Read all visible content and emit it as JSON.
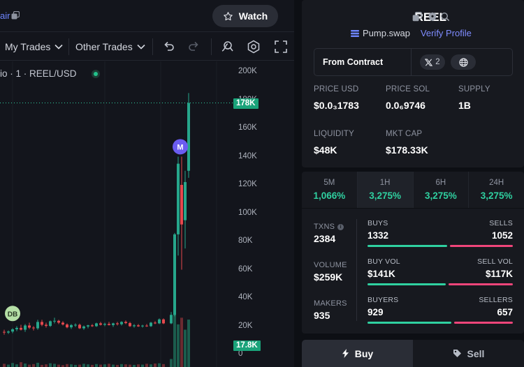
{
  "header": {
    "pair_link": "air",
    "watch_label": "Watch"
  },
  "toolbar": {
    "my_trades": "My Trades",
    "other_trades": "Other Trades"
  },
  "chart": {
    "title": "io · 1 · REEL/USD",
    "last_price_tag": "178K",
    "volume_tag": "17.8K",
    "marker_m": "M",
    "marker_db": "DB"
  },
  "chart_data": {
    "type": "candlestick",
    "title": "REEL/USD",
    "interval": "1",
    "y_axis": {
      "ticks": [
        "200K",
        "180K",
        "160K",
        "140K",
        "120K",
        "100K",
        "80K",
        "60K",
        "40K",
        "20K",
        "0"
      ],
      "range": [
        0,
        200000
      ]
    },
    "last_price": 178000,
    "last_volume": 17800,
    "candles": [
      {
        "o": 16000,
        "h": 17500,
        "l": 14000,
        "c": 15500
      },
      {
        "o": 15500,
        "h": 17000,
        "l": 14500,
        "c": 16200
      },
      {
        "o": 16200,
        "h": 18500,
        "l": 15000,
        "c": 17800
      },
      {
        "o": 17800,
        "h": 20000,
        "l": 16500,
        "c": 18800
      },
      {
        "o": 18800,
        "h": 21000,
        "l": 17000,
        "c": 17500
      },
      {
        "o": 17500,
        "h": 21500,
        "l": 16000,
        "c": 20500
      },
      {
        "o": 20500,
        "h": 22500,
        "l": 18000,
        "c": 19000
      },
      {
        "o": 19000,
        "h": 20000,
        "l": 17000,
        "c": 18500
      },
      {
        "o": 18500,
        "h": 24500,
        "l": 17500,
        "c": 23000
      },
      {
        "o": 23000,
        "h": 24500,
        "l": 20000,
        "c": 21000
      },
      {
        "o": 21000,
        "h": 22500,
        "l": 19000,
        "c": 20200
      },
      {
        "o": 20200,
        "h": 24000,
        "l": 19500,
        "c": 23500
      },
      {
        "o": 23500,
        "h": 26000,
        "l": 22000,
        "c": 23800
      },
      {
        "o": 23800,
        "h": 24500,
        "l": 21500,
        "c": 22500
      },
      {
        "o": 22500,
        "h": 23500,
        "l": 20500,
        "c": 21200
      },
      {
        "o": 21200,
        "h": 22000,
        "l": 18500,
        "c": 19200
      },
      {
        "o": 19200,
        "h": 21500,
        "l": 18000,
        "c": 20800
      },
      {
        "o": 20800,
        "h": 22000,
        "l": 19500,
        "c": 21000
      },
      {
        "o": 21000,
        "h": 21800,
        "l": 18000,
        "c": 18500
      },
      {
        "o": 18500,
        "h": 20500,
        "l": 17500,
        "c": 19800
      },
      {
        "o": 19800,
        "h": 21000,
        "l": 18500,
        "c": 20600
      },
      {
        "o": 20600,
        "h": 21500,
        "l": 19500,
        "c": 20000
      },
      {
        "o": 20000,
        "h": 22500,
        "l": 19500,
        "c": 22000
      },
      {
        "o": 22000,
        "h": 23000,
        "l": 20500,
        "c": 21000
      },
      {
        "o": 21000,
        "h": 22500,
        "l": 20000,
        "c": 21600
      },
      {
        "o": 21600,
        "h": 23000,
        "l": 20500,
        "c": 20800
      },
      {
        "o": 20800,
        "h": 22500,
        "l": 19500,
        "c": 22000
      },
      {
        "o": 22000,
        "h": 23000,
        "l": 20500,
        "c": 21400
      },
      {
        "o": 21400,
        "h": 23500,
        "l": 20500,
        "c": 23000
      },
      {
        "o": 23000,
        "h": 24000,
        "l": 21500,
        "c": 22200
      },
      {
        "o": 22200,
        "h": 23000,
        "l": 19500,
        "c": 20000
      },
      {
        "o": 20000,
        "h": 21500,
        "l": 19000,
        "c": 20600
      },
      {
        "o": 20600,
        "h": 21500,
        "l": 19500,
        "c": 19900
      },
      {
        "o": 19900,
        "h": 21000,
        "l": 19000,
        "c": 20400
      },
      {
        "o": 20400,
        "h": 21500,
        "l": 19500,
        "c": 20000
      },
      {
        "o": 20000,
        "h": 23000,
        "l": 19500,
        "c": 22500
      },
      {
        "o": 22500,
        "h": 23500,
        "l": 21500,
        "c": 22000
      },
      {
        "o": 22000,
        "h": 25500,
        "l": 21500,
        "c": 24800
      },
      {
        "o": 24800,
        "h": 25500,
        "l": 21500,
        "c": 22000
      },
      {
        "o": 22000,
        "h": 30000,
        "l": 21500,
        "c": 28000
      },
      {
        "o": 28000,
        "h": 86000,
        "l": 27000,
        "c": 85000
      },
      {
        "o": 85000,
        "h": 140000,
        "l": 70000,
        "c": 135000
      },
      {
        "o": 120000,
        "h": 140000,
        "l": 60000,
        "c": 92000
      },
      {
        "o": 95000,
        "h": 130000,
        "l": 75000,
        "c": 122000
      },
      {
        "o": 130000,
        "h": 185000,
        "l": 125000,
        "c": 178000
      }
    ],
    "volumes": [
      1200,
      900,
      1500,
      1000,
      1800,
      1300,
      900,
      1100,
      1600,
      800,
      1000,
      1400,
      1200,
      900,
      700,
      1100,
      1000,
      800,
      900,
      1200,
      1000,
      800,
      1100,
      900,
      1000,
      1200,
      900,
      800,
      1100,
      1000,
      900,
      800,
      1000,
      900,
      1200,
      1000,
      1300,
      1400,
      1100,
      3000,
      22000,
      16000,
      18500,
      14000,
      17800
    ]
  },
  "token": {
    "name": "REEL",
    "dex": "Pump.swap",
    "verify": "Verify Profile",
    "contract_label": "From Contract",
    "x_count": "2",
    "stats": [
      {
        "label": "PRICE USD",
        "value": "$0.0₃1783"
      },
      {
        "label": "PRICE SOL",
        "value": "0.0₆9746"
      },
      {
        "label": "SUPPLY",
        "value": "1B"
      },
      {
        "label": "LIQUIDITY",
        "value": "$48K"
      },
      {
        "label": "MKT CAP",
        "value": "$178.33K"
      }
    ]
  },
  "periods": [
    {
      "label": "5M",
      "value": "1,066%"
    },
    {
      "label": "1H",
      "value": "3,275%"
    },
    {
      "label": "6H",
      "value": "3,275%"
    },
    {
      "label": "24H",
      "value": "3,275%"
    }
  ],
  "txns": {
    "left": [
      {
        "label": "TXNS",
        "value": "2384"
      },
      {
        "label": "VOLUME",
        "value": "$259K"
      },
      {
        "label": "MAKERS",
        "value": "935"
      }
    ],
    "rows": [
      {
        "left_label": "BUYS",
        "left_value": "1332",
        "right_label": "SELLS",
        "right_value": "1052",
        "buy_fraction": 0.559
      },
      {
        "left_label": "BUY VOL",
        "left_value": "$141K",
        "right_label": "SELL VOL",
        "right_value": "$117K",
        "buy_fraction": 0.547
      },
      {
        "left_label": "BUYERS",
        "left_value": "929",
        "right_label": "SELLERS",
        "right_value": "657",
        "buy_fraction": 0.586
      }
    ]
  },
  "trade": {
    "buy": "Buy",
    "sell": "Sell"
  },
  "colors": {
    "up": "#26a68b",
    "down": "#e5484d",
    "accent_green": "#2fd0a0",
    "accent_red": "#f0457a",
    "link": "#7f8cff"
  }
}
